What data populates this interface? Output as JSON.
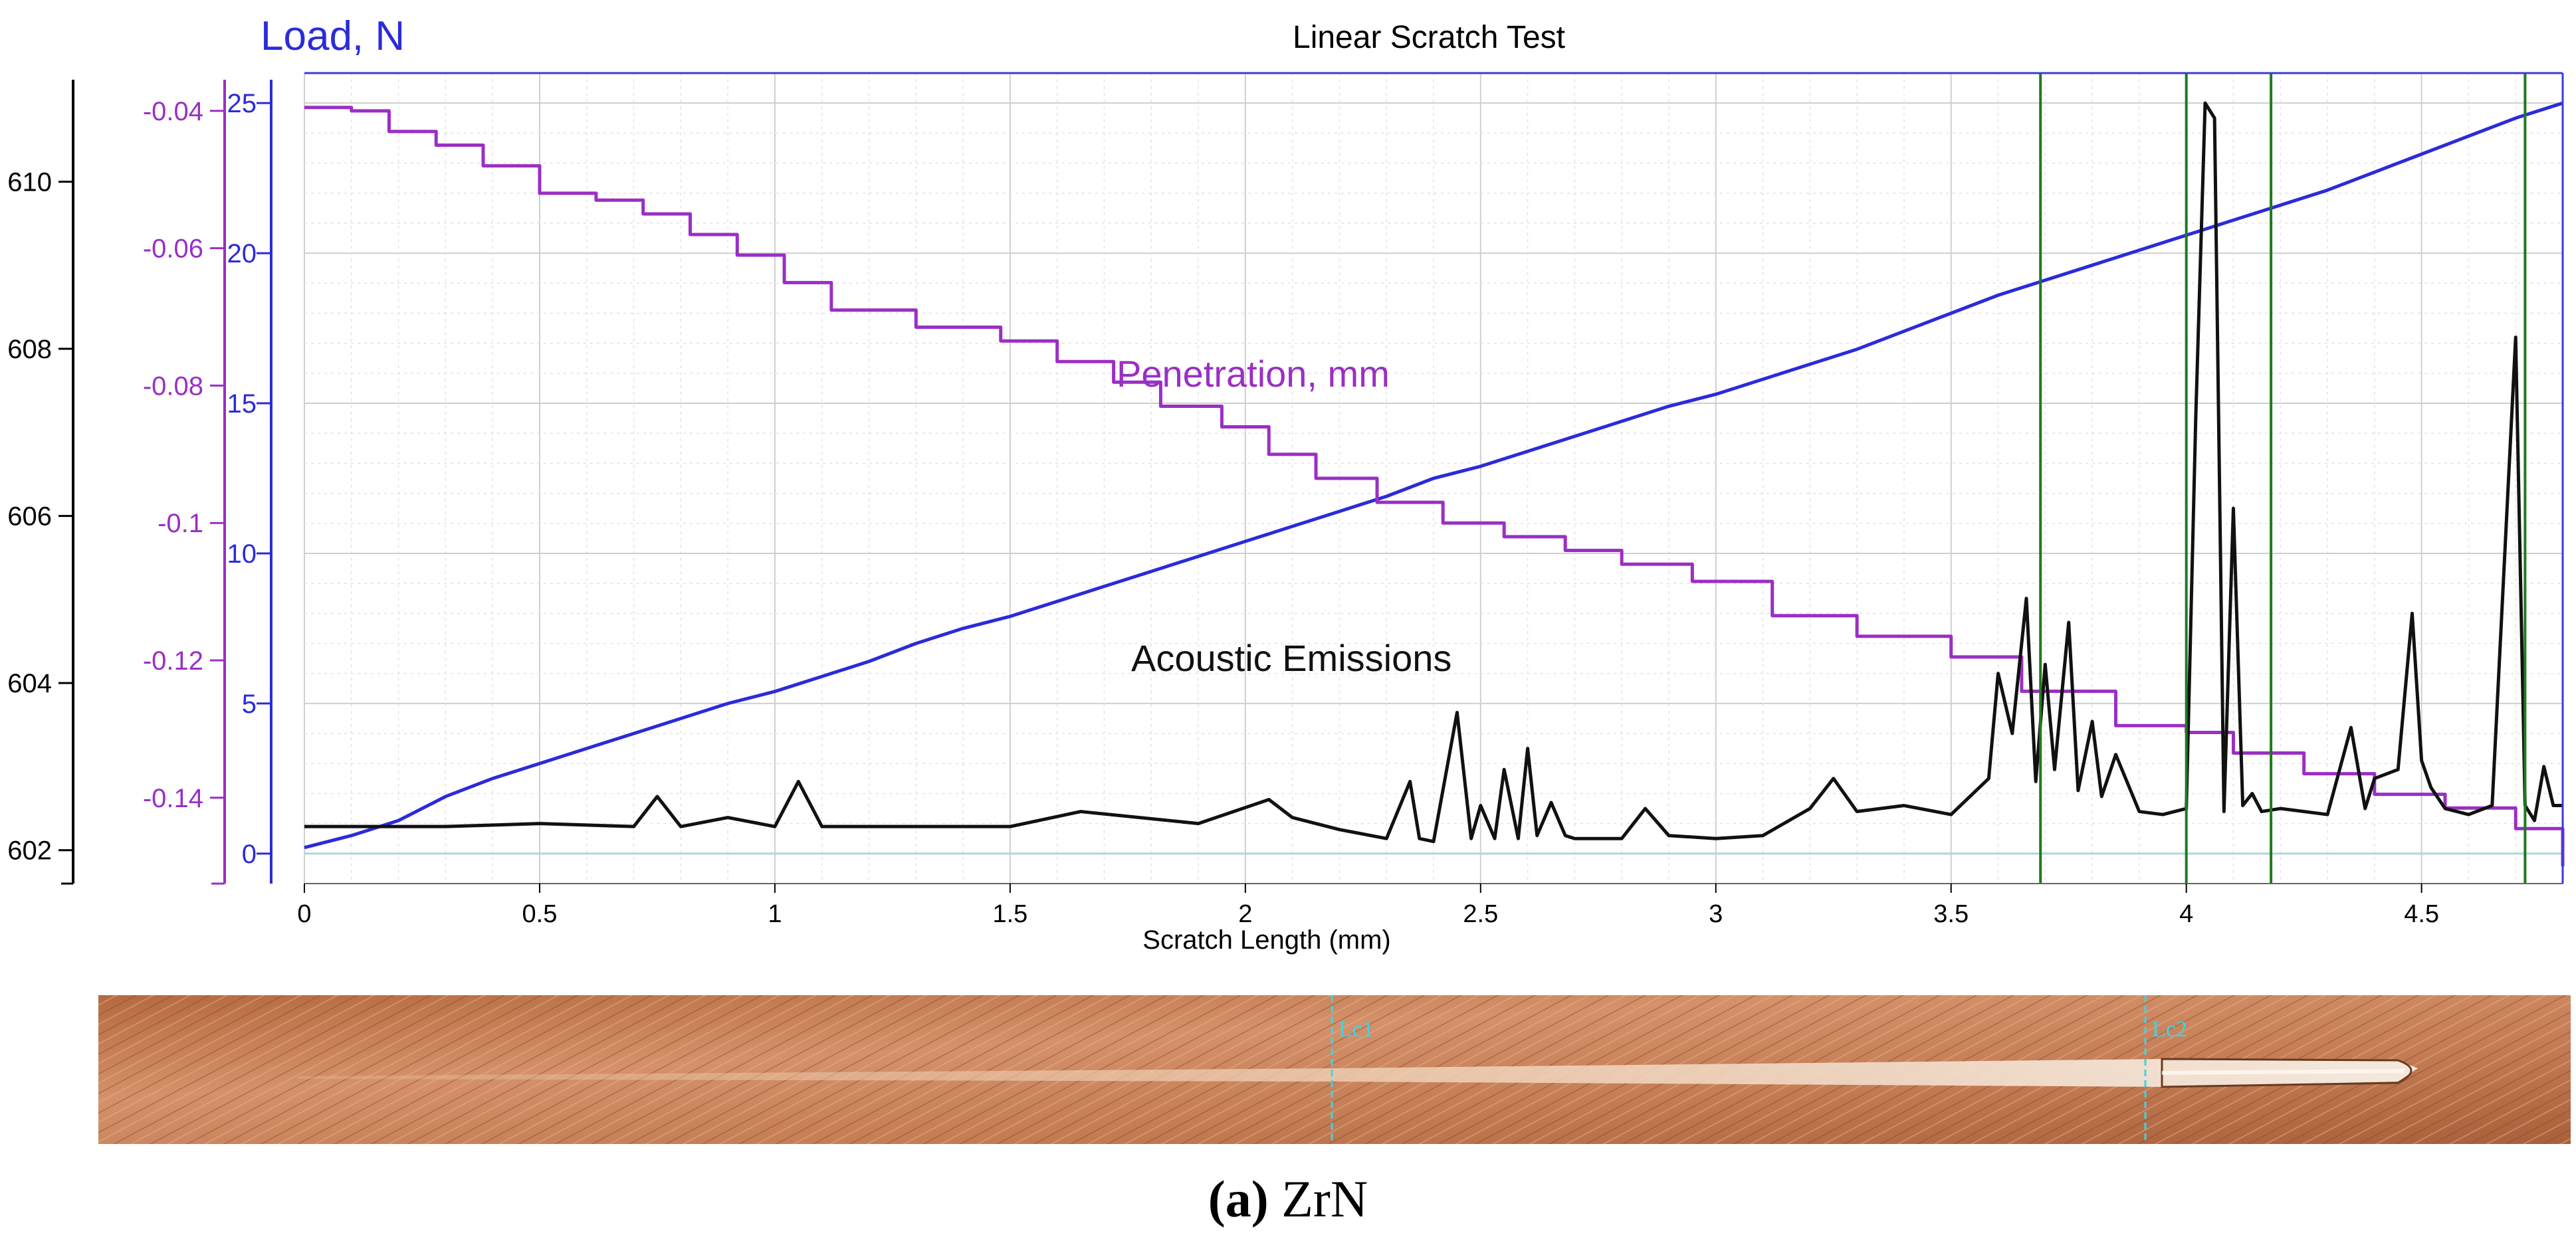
{
  "chart_data": {
    "type": "line",
    "title": "Linear Scratch Test",
    "xlabel": "Scratch Length (mm)",
    "xlim": [
      0,
      4.8
    ],
    "x_ticks": [
      "0",
      "0.5",
      "1",
      "1.5",
      "2",
      "2.5",
      "3",
      "3.5",
      "4",
      "4.5"
    ],
    "grid": true,
    "axes": {
      "load": {
        "label": "Load, N",
        "range": [
          -1.0,
          26.0
        ],
        "ticks": [
          "0",
          "5",
          "10",
          "15",
          "20",
          "25"
        ],
        "color": "#2b2bd9"
      },
      "penetration": {
        "label": "",
        "range": [
          -0.1525,
          -0.0345
        ],
        "ticks": [
          "-0.04",
          "-0.06",
          "-0.08",
          "-0.1",
          "-0.12",
          "-0.14"
        ],
        "color": "#9a2fc4"
      },
      "outer": {
        "label": "",
        "range": [
          601.6,
          611.3
        ],
        "ticks": [
          "602",
          "604",
          "606",
          "608",
          "610"
        ],
        "color": "#000000"
      }
    },
    "series": [
      {
        "name": "Load, N",
        "axis": "load",
        "color": "#2b2bd9",
        "x": [
          0,
          0.1,
          0.2,
          0.3,
          0.4,
          0.5,
          0.6,
          0.7,
          0.8,
          0.9,
          1.0,
          1.1,
          1.2,
          1.3,
          1.4,
          1.5,
          1.6,
          1.7,
          1.8,
          1.9,
          2.0,
          2.1,
          2.2,
          2.3,
          2.4,
          2.5,
          2.6,
          2.7,
          2.8,
          2.9,
          3.0,
          3.1,
          3.2,
          3.3,
          3.4,
          3.5,
          3.6,
          3.7,
          3.8,
          3.9,
          4.0,
          4.1,
          4.2,
          4.3,
          4.4,
          4.5,
          4.6,
          4.7,
          4.8
        ],
        "values": [
          0.2,
          0.6,
          1.1,
          1.9,
          2.5,
          3.0,
          3.5,
          4.0,
          4.5,
          5.0,
          5.4,
          5.9,
          6.4,
          7.0,
          7.5,
          7.9,
          8.4,
          8.9,
          9.4,
          9.9,
          10.4,
          10.9,
          11.4,
          11.9,
          12.5,
          12.9,
          13.4,
          13.9,
          14.4,
          14.9,
          15.3,
          15.8,
          16.3,
          16.8,
          17.4,
          18.0,
          18.6,
          19.1,
          19.6,
          20.1,
          20.6,
          21.1,
          21.6,
          22.1,
          22.7,
          23.3,
          23.9,
          24.5,
          25.0
        ]
      },
      {
        "name": "Penetration, mm",
        "axis": "penetration",
        "color": "#9a2fc4",
        "x": [
          0,
          0.1,
          0.18,
          0.28,
          0.38,
          0.5,
          0.62,
          0.72,
          0.82,
          0.92,
          1.02,
          1.12,
          1.3,
          1.48,
          1.6,
          1.72,
          1.82,
          1.95,
          2.05,
          2.15,
          2.28,
          2.42,
          2.55,
          2.68,
          2.8,
          2.95,
          3.12,
          3.3,
          3.5,
          3.65,
          3.85,
          4.0,
          4.1,
          4.25,
          4.4,
          4.55,
          4.7,
          4.8
        ],
        "values": [
          -0.0395,
          -0.04,
          -0.043,
          -0.045,
          -0.048,
          -0.052,
          -0.053,
          -0.055,
          -0.058,
          -0.061,
          -0.065,
          -0.069,
          -0.0715,
          -0.0735,
          -0.0765,
          -0.0795,
          -0.083,
          -0.086,
          -0.09,
          -0.0935,
          -0.097,
          -0.1,
          -0.102,
          -0.104,
          -0.106,
          -0.1085,
          -0.1135,
          -0.1165,
          -0.1195,
          -0.1245,
          -0.1295,
          -0.1305,
          -0.1335,
          -0.1365,
          -0.1395,
          -0.1415,
          -0.1445,
          -0.15
        ]
      },
      {
        "name": "Acoustic Emissions",
        "axis": "load",
        "color": "#111111",
        "x": [
          0,
          0.3,
          0.5,
          0.7,
          0.75,
          0.8,
          0.9,
          1.0,
          1.05,
          1.1,
          1.5,
          1.65,
          1.9,
          2.05,
          2.1,
          2.2,
          2.3,
          2.35,
          2.37,
          2.4,
          2.45,
          2.48,
          2.5,
          2.53,
          2.55,
          2.58,
          2.6,
          2.62,
          2.65,
          2.68,
          2.7,
          2.8,
          2.85,
          2.9,
          3.0,
          3.1,
          3.2,
          3.25,
          3.3,
          3.4,
          3.5,
          3.58,
          3.6,
          3.63,
          3.66,
          3.68,
          3.7,
          3.72,
          3.75,
          3.77,
          3.8,
          3.82,
          3.85,
          3.9,
          3.95,
          4.0,
          4.02,
          4.04,
          4.06,
          4.08,
          4.1,
          4.12,
          4.14,
          4.16,
          4.2,
          4.3,
          4.35,
          4.38,
          4.4,
          4.45,
          4.48,
          4.5,
          4.52,
          4.55,
          4.6,
          4.65,
          4.7,
          4.72,
          4.74,
          4.76,
          4.78,
          4.8
        ],
        "values": [
          0.9,
          0.9,
          1.0,
          0.9,
          1.9,
          0.9,
          1.2,
          0.9,
          2.4,
          0.9,
          0.9,
          1.4,
          1.0,
          1.8,
          1.2,
          0.8,
          0.5,
          2.4,
          0.5,
          0.4,
          4.7,
          0.5,
          1.6,
          0.5,
          2.8,
          0.5,
          3.5,
          0.6,
          1.7,
          0.6,
          0.5,
          0.5,
          1.5,
          0.6,
          0.5,
          0.6,
          1.5,
          2.5,
          1.4,
          1.6,
          1.3,
          2.5,
          6.0,
          4.0,
          8.5,
          2.4,
          6.3,
          2.8,
          7.7,
          2.1,
          4.4,
          1.9,
          3.3,
          1.4,
          1.3,
          1.5,
          14.5,
          25.0,
          24.5,
          1.4,
          11.5,
          1.6,
          2.0,
          1.4,
          1.5,
          1.3,
          4.2,
          1.5,
          2.5,
          2.8,
          8.0,
          3.1,
          2.2,
          1.5,
          1.3,
          1.6,
          17.2,
          1.6,
          1.1,
          2.9,
          1.6,
          1.6
        ]
      }
    ],
    "vertical_markers": [
      3.69,
      4.0,
      4.18,
      4.72
    ],
    "annotations": [
      {
        "text": "Penetration, mm",
        "color": "#9a2fc4"
      },
      {
        "text": "Acoustic Emissions",
        "color": "#111111"
      }
    ]
  },
  "micrograph": {
    "marker_labels": [
      "Lc1",
      "Lc2"
    ]
  },
  "caption": {
    "label": "(a)",
    "text": "ZrN"
  }
}
